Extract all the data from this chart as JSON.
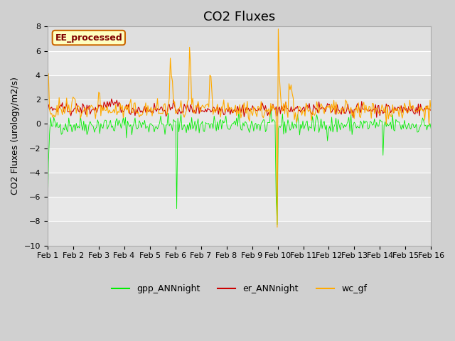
{
  "title": "CO2 Fluxes",
  "ylabel": "CO2 Fluxes (urology/m2/s)",
  "xlabel": "",
  "ylim": [
    -10,
    8
  ],
  "yticks": [
    -10,
    -8,
    -6,
    -4,
    -2,
    0,
    2,
    4,
    6,
    8
  ],
  "x_labels": [
    "Feb 1",
    "Feb 2",
    "Feb 3",
    "Feb 4",
    "Feb 5",
    "Feb 6",
    "Feb 7",
    "Feb 8",
    "Feb 9",
    "Feb 10",
    "Feb 11",
    "Feb 12",
    "Feb 13",
    "Feb 14",
    "Feb 15",
    "Feb 16"
  ],
  "n_days": 15,
  "pts_per_day": 24,
  "label_box_text": "EE_processed",
  "label_box_facecolor": "#ffffc0",
  "label_box_edgecolor": "#cc6600",
  "label_box_textcolor": "#800000",
  "bg_color": "#d8d8d8",
  "ax_bg_color": "#e8e8e8",
  "gpp_color": "#00ee00",
  "er_color": "#cc0000",
  "wc_color": "#ffaa00",
  "legend_labels": [
    "gpp_ANNnight",
    "er_ANNnight",
    "wc_gf"
  ],
  "title_fontsize": 13,
  "axis_fontsize": 9,
  "tick_fontsize": 8,
  "legend_fontsize": 9
}
